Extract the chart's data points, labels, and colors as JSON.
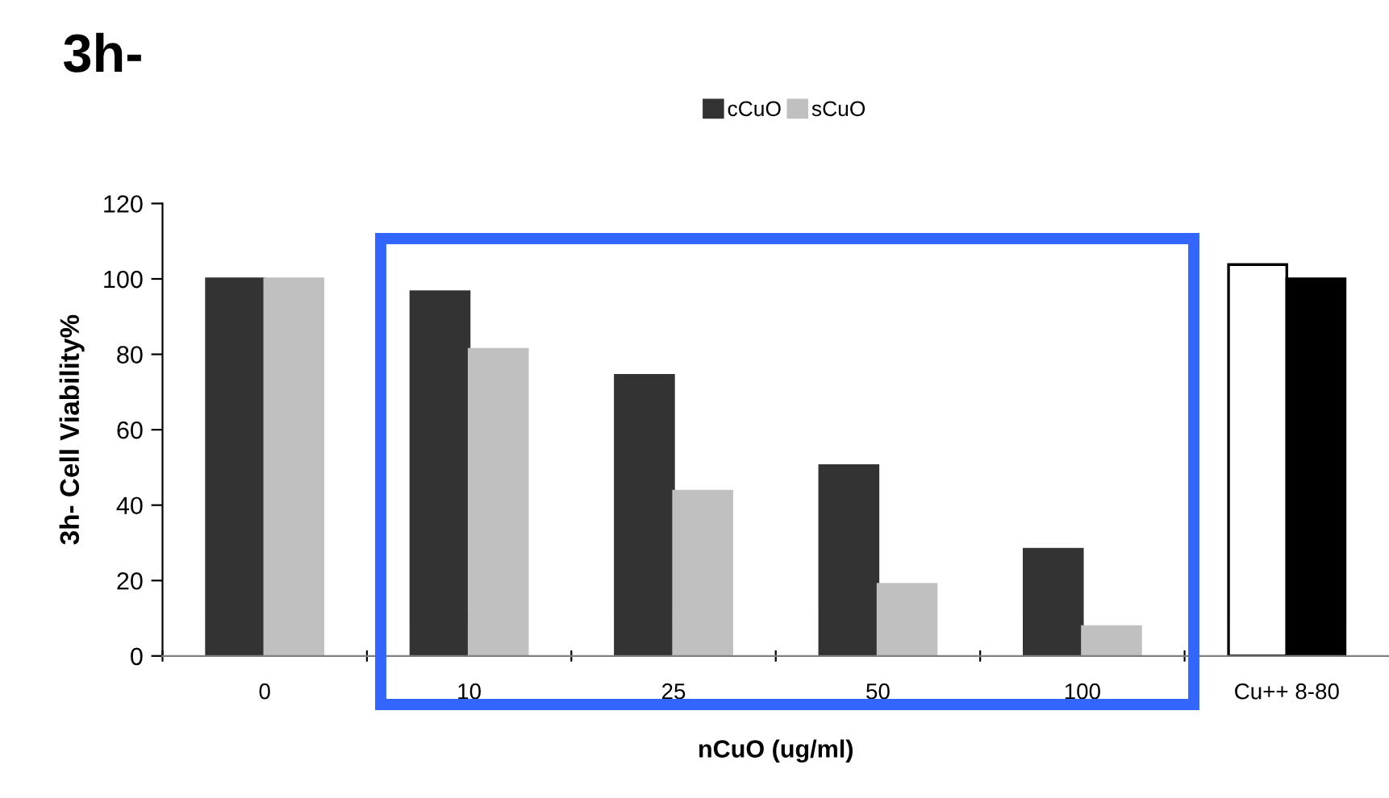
{
  "chart_data": {
    "type": "bar",
    "title": "3h-",
    "xlabel": "nCuO (ug/ml)",
    "ylabel": "3h- Cell Viability%",
    "categories": [
      "0",
      "10",
      "25",
      "50",
      "100",
      "Cu++ 8-80"
    ],
    "series": [
      {
        "name": "cCuO",
        "color": "#333333",
        "colors": [
          "#333333",
          "#333333",
          "#333333",
          "#333333",
          "#333333",
          "#ffffff"
        ],
        "values": [
          100,
          96.6,
          74.4,
          50.5,
          28.3,
          103.8
        ]
      },
      {
        "name": "sCuO",
        "color": "#c0c0c0",
        "colors": [
          "#c0c0c0",
          "#c0c0c0",
          "#c0c0c0",
          "#c0c0c0",
          "#c0c0c0",
          "#000000"
        ],
        "values": [
          100,
          81.3,
          43.7,
          19,
          7.8,
          100
        ]
      }
    ],
    "ylim": [
      0,
      120
    ],
    "yticks": [
      0,
      20,
      40,
      60,
      80,
      100,
      120
    ],
    "grid": false,
    "legend": "top"
  }
}
